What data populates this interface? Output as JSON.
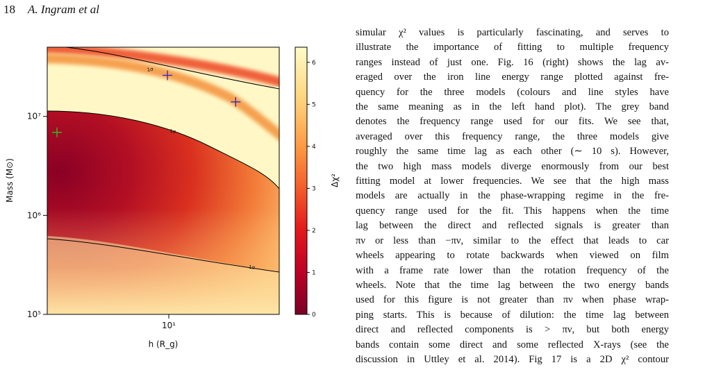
{
  "header": {
    "page_number": "18",
    "running_title": "A. Ingram et al"
  },
  "chart_data": {
    "type": "heatmap",
    "xlabel": "h (R_g)",
    "ylabel": "Mass (M⊙)",
    "colorbar_label": "Δχ²",
    "xscale": "log",
    "yscale": "log",
    "xlim": [
      1.7,
      50
    ],
    "ylim": [
      100000,
      50000000
    ],
    "xticks": [
      {
        "value": 10,
        "label": "10¹"
      }
    ],
    "yticks": [
      {
        "value": 100000,
        "label": "10⁵"
      },
      {
        "value": 1000000,
        "label": "10⁶"
      },
      {
        "value": 10000000,
        "label": "10⁷"
      }
    ],
    "clim": [
      0,
      6.36
    ],
    "cticks": [
      0,
      1,
      2,
      3,
      4,
      5,
      6
    ],
    "contour_labels": [
      "1σ",
      "1σ",
      "1σ"
    ],
    "markers": [
      {
        "color": "#2222ee",
        "x": [
          9.8,
          26.5
        ],
        "y": [
          26000000,
          14000000
        ]
      },
      {
        "color": "#22cc22",
        "x": [
          1.96
        ],
        "y": [
          6900000
        ]
      }
    ]
  },
  "text": {
    "lines": [
      "simular χ² values is particularly fascinating, and serves to",
      "illustrate the importance of fitting to multiple frequency",
      "ranges instead of just one. Fig. 16 (right) shows the lag av-",
      "eraged over the iron line energy range plotted against fre-",
      "quency for the three models (colours and line styles have",
      "the same meaning as in the left hand plot). The grey band",
      "denotes the frequency range used for our fits. We see that,",
      "averaged over this frequency range, the three models give",
      "roughly the same time lag as each other (∼ 10 s). However,",
      "the two high mass models diverge enormously from our best",
      "fitting model at lower frequencies. We see that the high mass",
      "models are actually in the phase-wrapping regime in the fre-",
      "quency range used for the fit. This happens when the time",
      "lag between the direct and reflected signals is greater than",
      "πν or less than −πν, similar to the effect that leads to car",
      "wheels appearing to rotate backwards when viewed on film",
      "with a frame rate lower than the rotation frequency of the",
      "wheels. Note that the time lag between the two energy bands",
      "used for this figure is not greater than πν when phase wrap-",
      "ping starts. This is because of dilution: the time lag between",
      "direct and reflected components is > πν, but both energy",
      "bands contain some direct and some reflected X-rays (see the",
      "discussion in Uttley et al. 2014). Fig 17 is a 2D χ² contour"
    ]
  }
}
